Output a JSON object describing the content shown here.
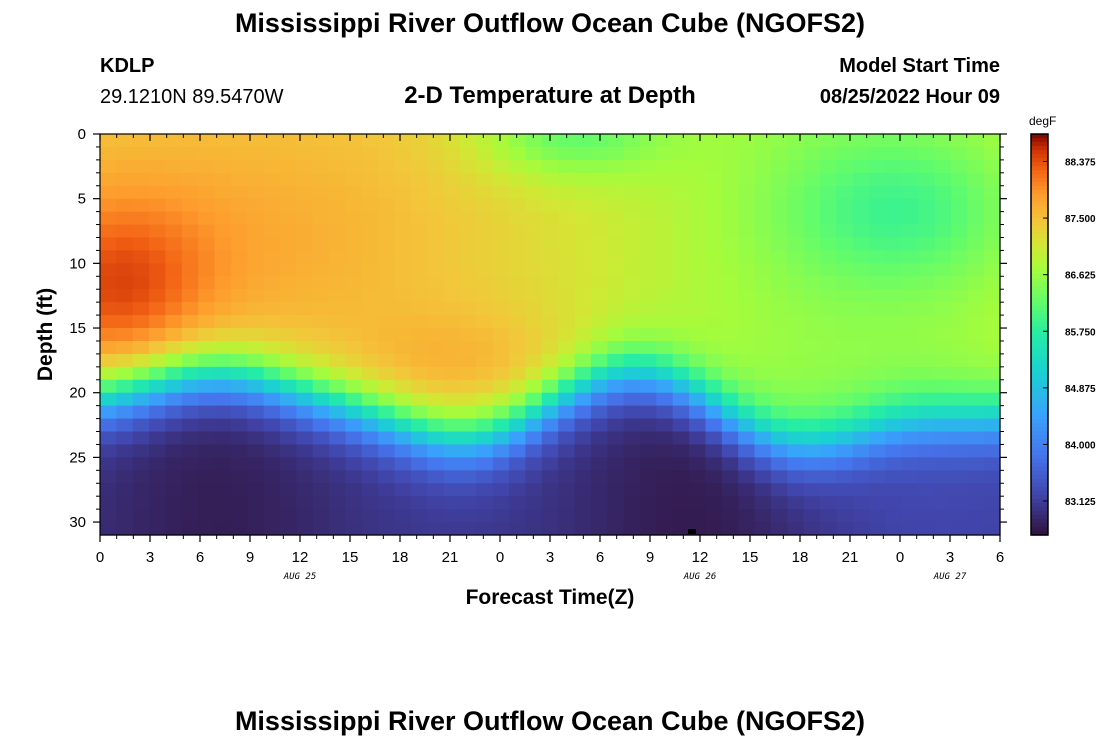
{
  "header": {
    "title_top": "Mississippi River Outflow Ocean Cube (NGOFS2)",
    "title_bottom": "Mississippi River Outflow Ocean Cube (NGOFS2)",
    "station_id": "KDLP",
    "station_coords": "29.1210N  89.5470W",
    "plot_title": "2-D Temperature at Depth",
    "model_start_label": "Model Start Time",
    "model_start_value": "08/25/2022 Hour 09"
  },
  "chart_data": {
    "type": "heatmap",
    "title": "2-D Temperature at Depth",
    "xlabel": "Forecast Time(Z)",
    "ylabel": "Depth (ft)",
    "x_tick_labels": [
      "0",
      "3",
      "6",
      "9",
      "12",
      "15",
      "18",
      "21",
      "0",
      "3",
      "6",
      "9",
      "12",
      "15",
      "18",
      "21",
      "0",
      "3",
      "6"
    ],
    "x_range_hours": [
      0,
      54
    ],
    "date_labels": [
      {
        "text": "AUG 25",
        "at_hour": 12
      },
      {
        "text": "AUG 26",
        "at_hour": 36
      },
      {
        "text": "AUG 27",
        "at_hour": 51
      }
    ],
    "y_tick_labels": [
      "0",
      "5",
      "10",
      "15",
      "20",
      "25",
      "30"
    ],
    "y_range_ft": [
      0,
      31
    ],
    "colorbar": {
      "unit": "degF",
      "min": 82.6,
      "max": 88.8,
      "tick_labels": [
        "88.375",
        "87.500",
        "86.625",
        "85.750",
        "84.875",
        "84.000",
        "83.125"
      ],
      "tick_values": [
        88.375,
        87.5,
        86.625,
        85.75,
        84.875,
        84.0,
        83.125
      ]
    },
    "grid_resolution": {
      "time_columns": 55,
      "depth_rows": 31
    },
    "description_values": {
      "surface_warm_core_max": 88.6,
      "deep_cool_min": 82.7,
      "upper_right_cool_patch": 86.2
    }
  }
}
